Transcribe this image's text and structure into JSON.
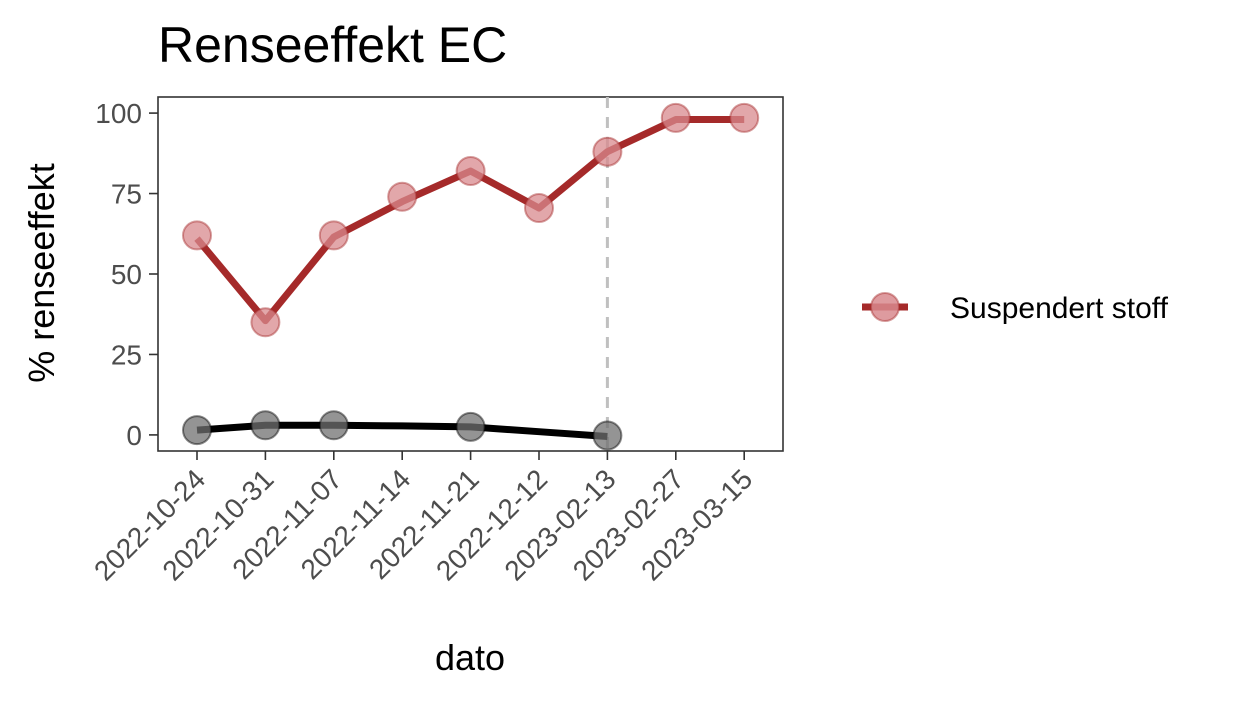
{
  "chart_data": {
    "type": "line",
    "title": "Renseeffekt EC",
    "xlabel": "dato",
    "ylabel": "% renseeffekt",
    "categories": [
      "2022-10-24",
      "2022-10-31",
      "2022-11-07",
      "2022-11-14",
      "2022-11-21",
      "2022-12-12",
      "2023-02-13",
      "2023-02-27",
      "2023-03-15"
    ],
    "ylim": [
      -5,
      105
    ],
    "yticks": [
      0,
      25,
      50,
      75,
      100
    ],
    "grid": false,
    "legend_position": "right",
    "reference_line": {
      "type": "vertical",
      "category": "2023-02-13",
      "style": "dashed",
      "color": "#c0c0c0"
    },
    "series": [
      {
        "name": "Suspendert stoff",
        "color": "#a52a2a",
        "marker_color": "#d88a8e",
        "in_legend": true,
        "values": [
          62,
          35,
          62,
          74,
          82,
          70.5,
          88,
          98.5,
          98.5
        ],
        "line_values": [
          61,
          35.5,
          61.5,
          72.5,
          82,
          70.5,
          88,
          98,
          98
        ]
      },
      {
        "color": "#000000",
        "marker_color": "#707070",
        "in_legend": false,
        "values": [
          1.5,
          3,
          3,
          null,
          2.5,
          null,
          -0.2,
          null,
          null
        ],
        "line_values": [
          1.5,
          3,
          3,
          2.8,
          2.5,
          1,
          -0.5,
          null,
          null
        ]
      }
    ]
  }
}
